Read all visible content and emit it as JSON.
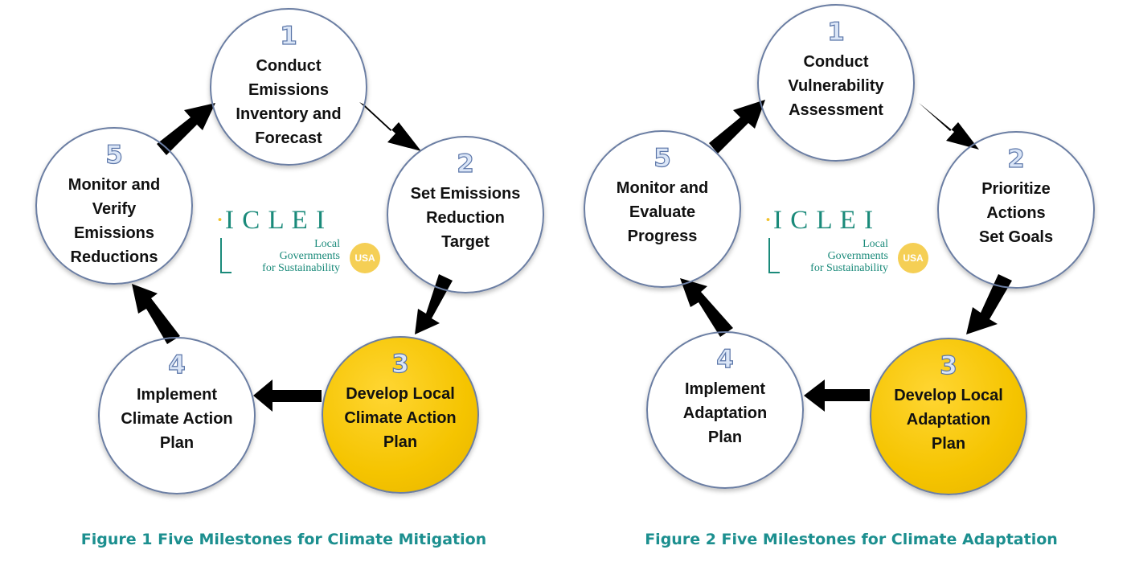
{
  "logo": {
    "name": "I C L E I",
    "tagline": "Local\nGovernments\nfor Sustainability",
    "badge": "USA"
  },
  "figures": [
    {
      "caption": "Figure 1 Five Milestones for Climate Mitigation",
      "milestones": [
        {
          "number": "1",
          "label": "Conduct\nEmissions\nInventory and\nForecast",
          "highlight": false
        },
        {
          "number": "2",
          "label": "Set Emissions\nReduction\nTarget",
          "highlight": false
        },
        {
          "number": "3",
          "label": "Develop Local\nClimate Action\nPlan",
          "highlight": true
        },
        {
          "number": "4",
          "label": "Implement\nClimate Action\nPlan",
          "highlight": false
        },
        {
          "number": "5",
          "label": "Monitor and\nVerify\nEmissions\nReductions",
          "highlight": false
        }
      ]
    },
    {
      "caption": "Figure 2 Five Milestones for Climate Adaptation",
      "milestones": [
        {
          "number": "1",
          "label": "Conduct\nVulnerability\nAssessment",
          "highlight": false
        },
        {
          "number": "2",
          "label": "Prioritize\nActions\nSet Goals",
          "highlight": false
        },
        {
          "number": "3",
          "label": "Develop Local\nAdaptation\nPlan",
          "highlight": true
        },
        {
          "number": "4",
          "label": "Implement\nAdaptation\nPlan",
          "highlight": false
        },
        {
          "number": "5",
          "label": "Monitor and\nEvaluate\nProgress",
          "highlight": false
        }
      ]
    }
  ],
  "colors": {
    "node_grey": "#d6d6d6",
    "node_highlight": "#f5c400",
    "arrow": "#000000",
    "caption": "#1c8f8f",
    "logo": "#1a8a7a"
  }
}
